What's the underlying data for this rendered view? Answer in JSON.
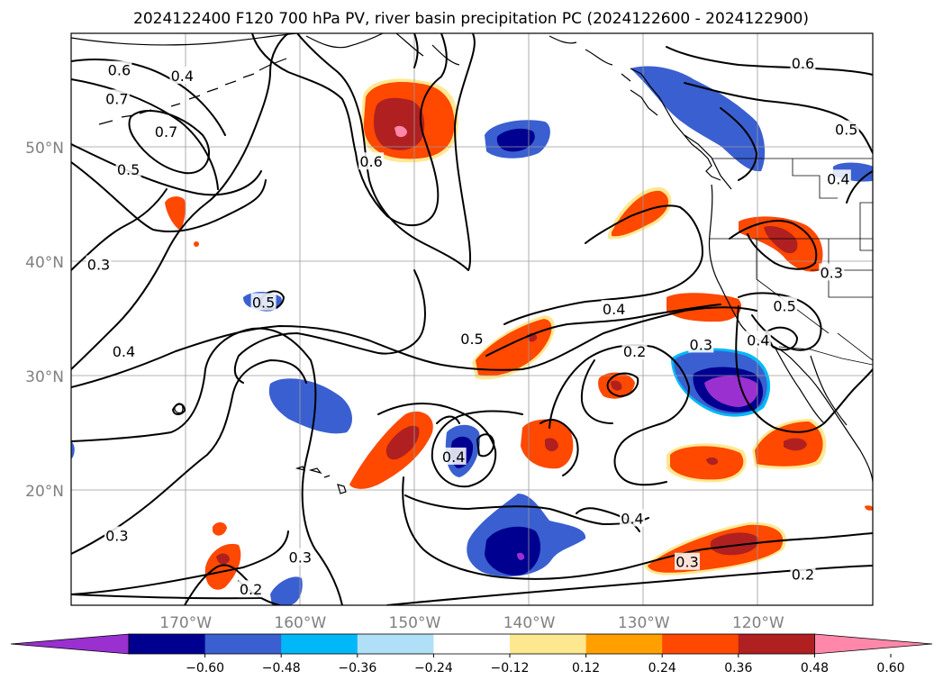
{
  "title": "2024122400 F120 700 hPa PV, river basin precipitation PC (2024122600 - 2024122900)",
  "map": {
    "lon_range": [
      -180,
      -110
    ],
    "lat_range": [
      10,
      60
    ],
    "lat_labels": [
      {
        "lat": 50,
        "text": "50°N"
      },
      {
        "lat": 40,
        "text": "40°N"
      },
      {
        "lat": 30,
        "text": "30°N"
      },
      {
        "lat": 20,
        "text": "20°N"
      }
    ],
    "lon_labels": [
      {
        "lon": -170,
        "text": "170°W"
      },
      {
        "lon": -160,
        "text": "160°W"
      },
      {
        "lon": -150,
        "text": "150°W"
      },
      {
        "lon": -140,
        "text": "140°W"
      },
      {
        "lon": -130,
        "text": "130°W"
      },
      {
        "lon": -120,
        "text": "120°W"
      }
    ],
    "contour_labels": [
      {
        "text": "0.6",
        "lon": -175.8,
        "lat": 56.8
      },
      {
        "text": "0.4",
        "lon": -170.3,
        "lat": 56.3
      },
      {
        "text": "0.7",
        "lon": -176.0,
        "lat": 54.3
      },
      {
        "text": "0.7",
        "lon": -171.7,
        "lat": 51.4
      },
      {
        "text": "0.5",
        "lon": -175.0,
        "lat": 48.1
      },
      {
        "text": "0.3",
        "lon": -177.6,
        "lat": 39.8
      },
      {
        "text": "0.4",
        "lon": -175.4,
        "lat": 32.2
      },
      {
        "text": "0.3",
        "lon": -176.0,
        "lat": 16.1
      },
      {
        "text": "0.5",
        "lon": -163.2,
        "lat": 36.5
      },
      {
        "text": "0.6",
        "lon": -153.8,
        "lat": 48.8
      },
      {
        "text": "0.3",
        "lon": -160.0,
        "lat": 14.2
      },
      {
        "text": "0.2",
        "lon": -164.3,
        "lat": 11.4
      },
      {
        "text": "0.5",
        "lon": -145.0,
        "lat": 33.3
      },
      {
        "text": "0.4",
        "lon": -146.6,
        "lat": 23.0
      },
      {
        "text": "0.4",
        "lon": -132.6,
        "lat": 35.9
      },
      {
        "text": "0.2",
        "lon": -130.8,
        "lat": 32.2
      },
      {
        "text": "0.3",
        "lon": -125.0,
        "lat": 32.8
      },
      {
        "text": "0.4",
        "lon": -131.0,
        "lat": 17.6
      },
      {
        "text": "0.3",
        "lon": -126.2,
        "lat": 13.8
      },
      {
        "text": "0.2",
        "lon": -116.1,
        "lat": 12.7
      },
      {
        "text": "0.6",
        "lon": -116.1,
        "lat": 57.4
      },
      {
        "text": "0.5",
        "lon": -112.3,
        "lat": 51.6
      },
      {
        "text": "0.4",
        "lon": -113.0,
        "lat": 47.3
      },
      {
        "text": "0.3",
        "lon": -113.6,
        "lat": 39.1
      },
      {
        "text": "0.5",
        "lon": -117.7,
        "lat": 36.2
      },
      {
        "text": "0.4",
        "lon": -120.0,
        "lat": 33.2
      }
    ]
  },
  "colorbar": {
    "colors": [
      "#9a30d0",
      "#000090",
      "#3a5fd0",
      "#00b8f8",
      "#b0e0f8",
      "#ffffff",
      "#fde890",
      "#ffa000",
      "#ff4800",
      "#b02020",
      "#ff88aa"
    ],
    "tick_labels": [
      "−0.60",
      "−0.48",
      "−0.36",
      "−0.24",
      "−0.12",
      "0.12",
      "0.24",
      "0.36",
      "0.48",
      "0.60"
    ]
  }
}
